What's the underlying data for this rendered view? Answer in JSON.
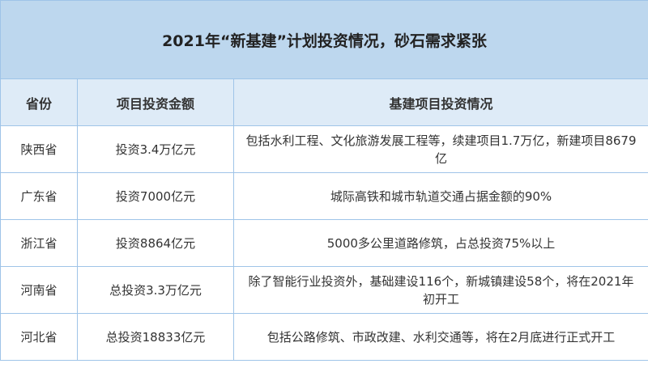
{
  "title": "2021年“新基建”计划投资情况，砂石需求紧张",
  "headers": [
    "省份",
    "项目投资金额",
    "基建项目投资情况"
  ],
  "rows": [
    {
      "province": "陕西省",
      "amount": "投资3.4万亿元",
      "details": "包括水利工程、文化旅游发展工程等，续建项目1.7万亿，新建项目8679亿"
    },
    {
      "province": "广东省",
      "amount": "投资7000亿元",
      "details": "城际高铁和城市轨道交通占据金额的90%"
    },
    {
      "province": "浙江省",
      "amount": "投资8864亿元",
      "details": "5000多公里道路修筑，占总投资75%以上"
    },
    {
      "province": "河南省",
      "amount": "总投资3.3万亿元",
      "details": "除了智能行业投资外，基础建设116个，新城镇建设58个，将在2021年初开工"
    },
    {
      "province": "河北省",
      "amount": "总投资18833亿元",
      "details": "包括公路修筑、市政改建、水利交通等，将在2月底进行正式开工"
    }
  ],
  "colors": {
    "title_bg": "#bdd7ee",
    "header_bg": "#deebf7",
    "border": "#9fc4e8"
  }
}
